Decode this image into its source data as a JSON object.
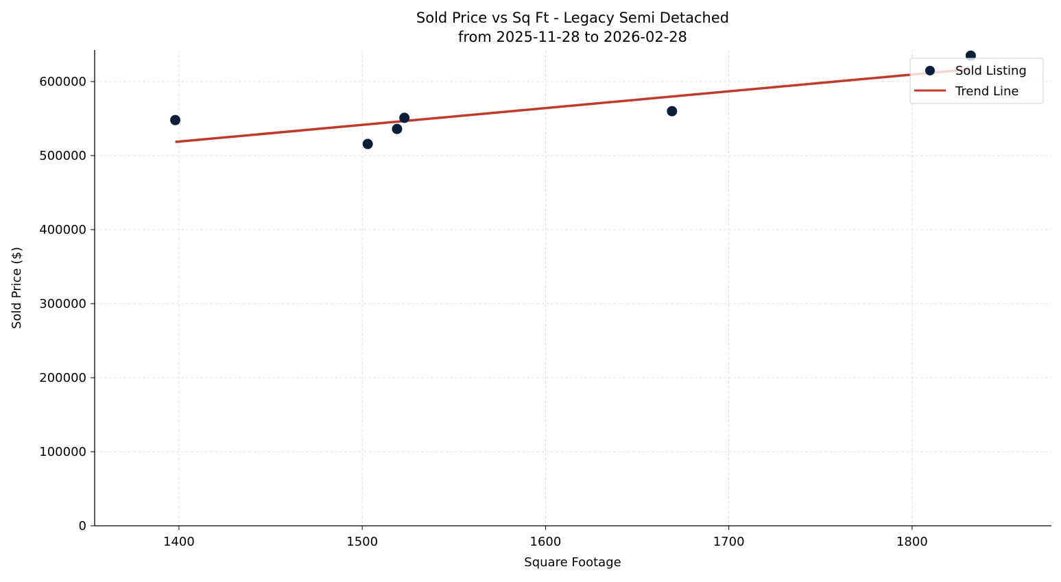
{
  "chart_data": {
    "type": "scatter",
    "title": "Sold Price vs Sq Ft - Legacy Semi Detached",
    "subtitle": "from 2025-11-28 to 2026-02-28",
    "xlabel": "Square Footage",
    "ylabel": "Sold Price ($)",
    "xlim": [
      1354,
      1876
    ],
    "ylim": [
      0,
      642600
    ],
    "xticks": [
      1400,
      1500,
      1600,
      1700,
      1800
    ],
    "yticks": [
      0,
      100000,
      200000,
      300000,
      400000,
      500000,
      600000
    ],
    "grid": true,
    "legend_placement": "upper-right",
    "series": [
      {
        "name": "Sold Listing",
        "type": "scatter",
        "color": "#0b1f3a",
        "points": [
          {
            "x": 1398,
            "y": 548000
          },
          {
            "x": 1503,
            "y": 515700
          },
          {
            "x": 1519,
            "y": 536000
          },
          {
            "x": 1523,
            "y": 551000
          },
          {
            "x": 1669,
            "y": 560000
          },
          {
            "x": 1832,
            "y": 635000
          }
        ]
      },
      {
        "name": "Trend Line",
        "type": "line",
        "color": "#c0392b",
        "points": [
          {
            "x": 1398,
            "y": 518500
          },
          {
            "x": 1832,
            "y": 616700
          }
        ]
      }
    ]
  }
}
